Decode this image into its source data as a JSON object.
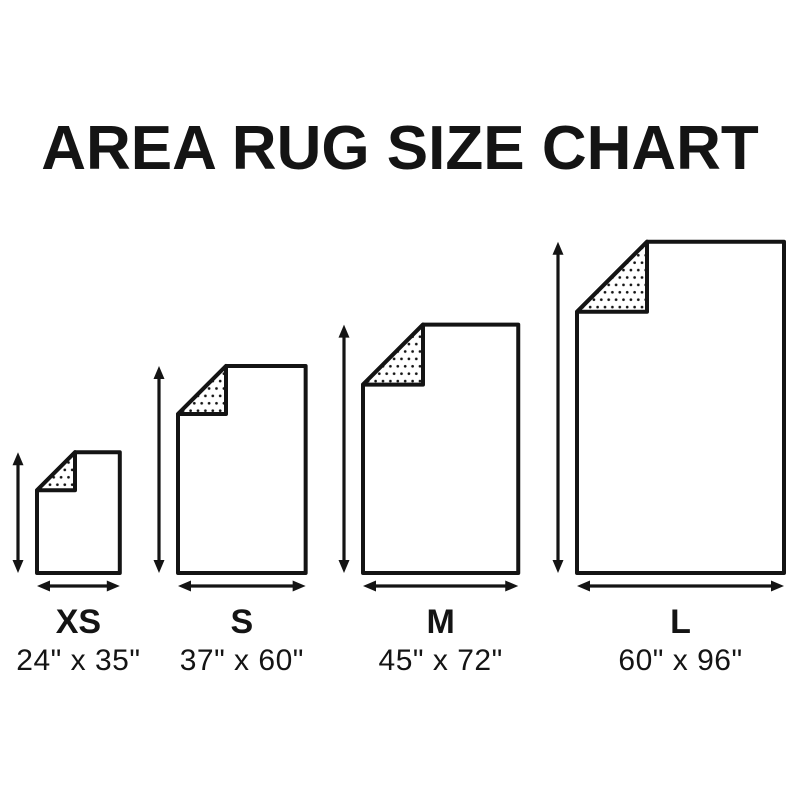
{
  "title": "AREA RUG SIZE CHART",
  "colors": {
    "ink": "#141414",
    "background": "#ffffff",
    "rug_fill": "#ffffff"
  },
  "chart_data": {
    "type": "diagram",
    "subtype": "size-chart",
    "title": "AREA RUG SIZE CHART",
    "unit": "inches",
    "fold_corner": "top-left",
    "baseline_aligned": true,
    "arrows": [
      "height",
      "width"
    ],
    "sizes": [
      {
        "label": "XS",
        "dimensions": "24\" x 35\"",
        "width_in": 24,
        "height_in": 35
      },
      {
        "label": "S",
        "dimensions": "37\" x 60\"",
        "width_in": 37,
        "height_in": 60
      },
      {
        "label": "M",
        "dimensions": "45\" x 72\"",
        "width_in": 45,
        "height_in": 72
      },
      {
        "label": "L",
        "dimensions": "60\" x 96\"",
        "width_in": 60,
        "height_in": 96
      }
    ]
  }
}
